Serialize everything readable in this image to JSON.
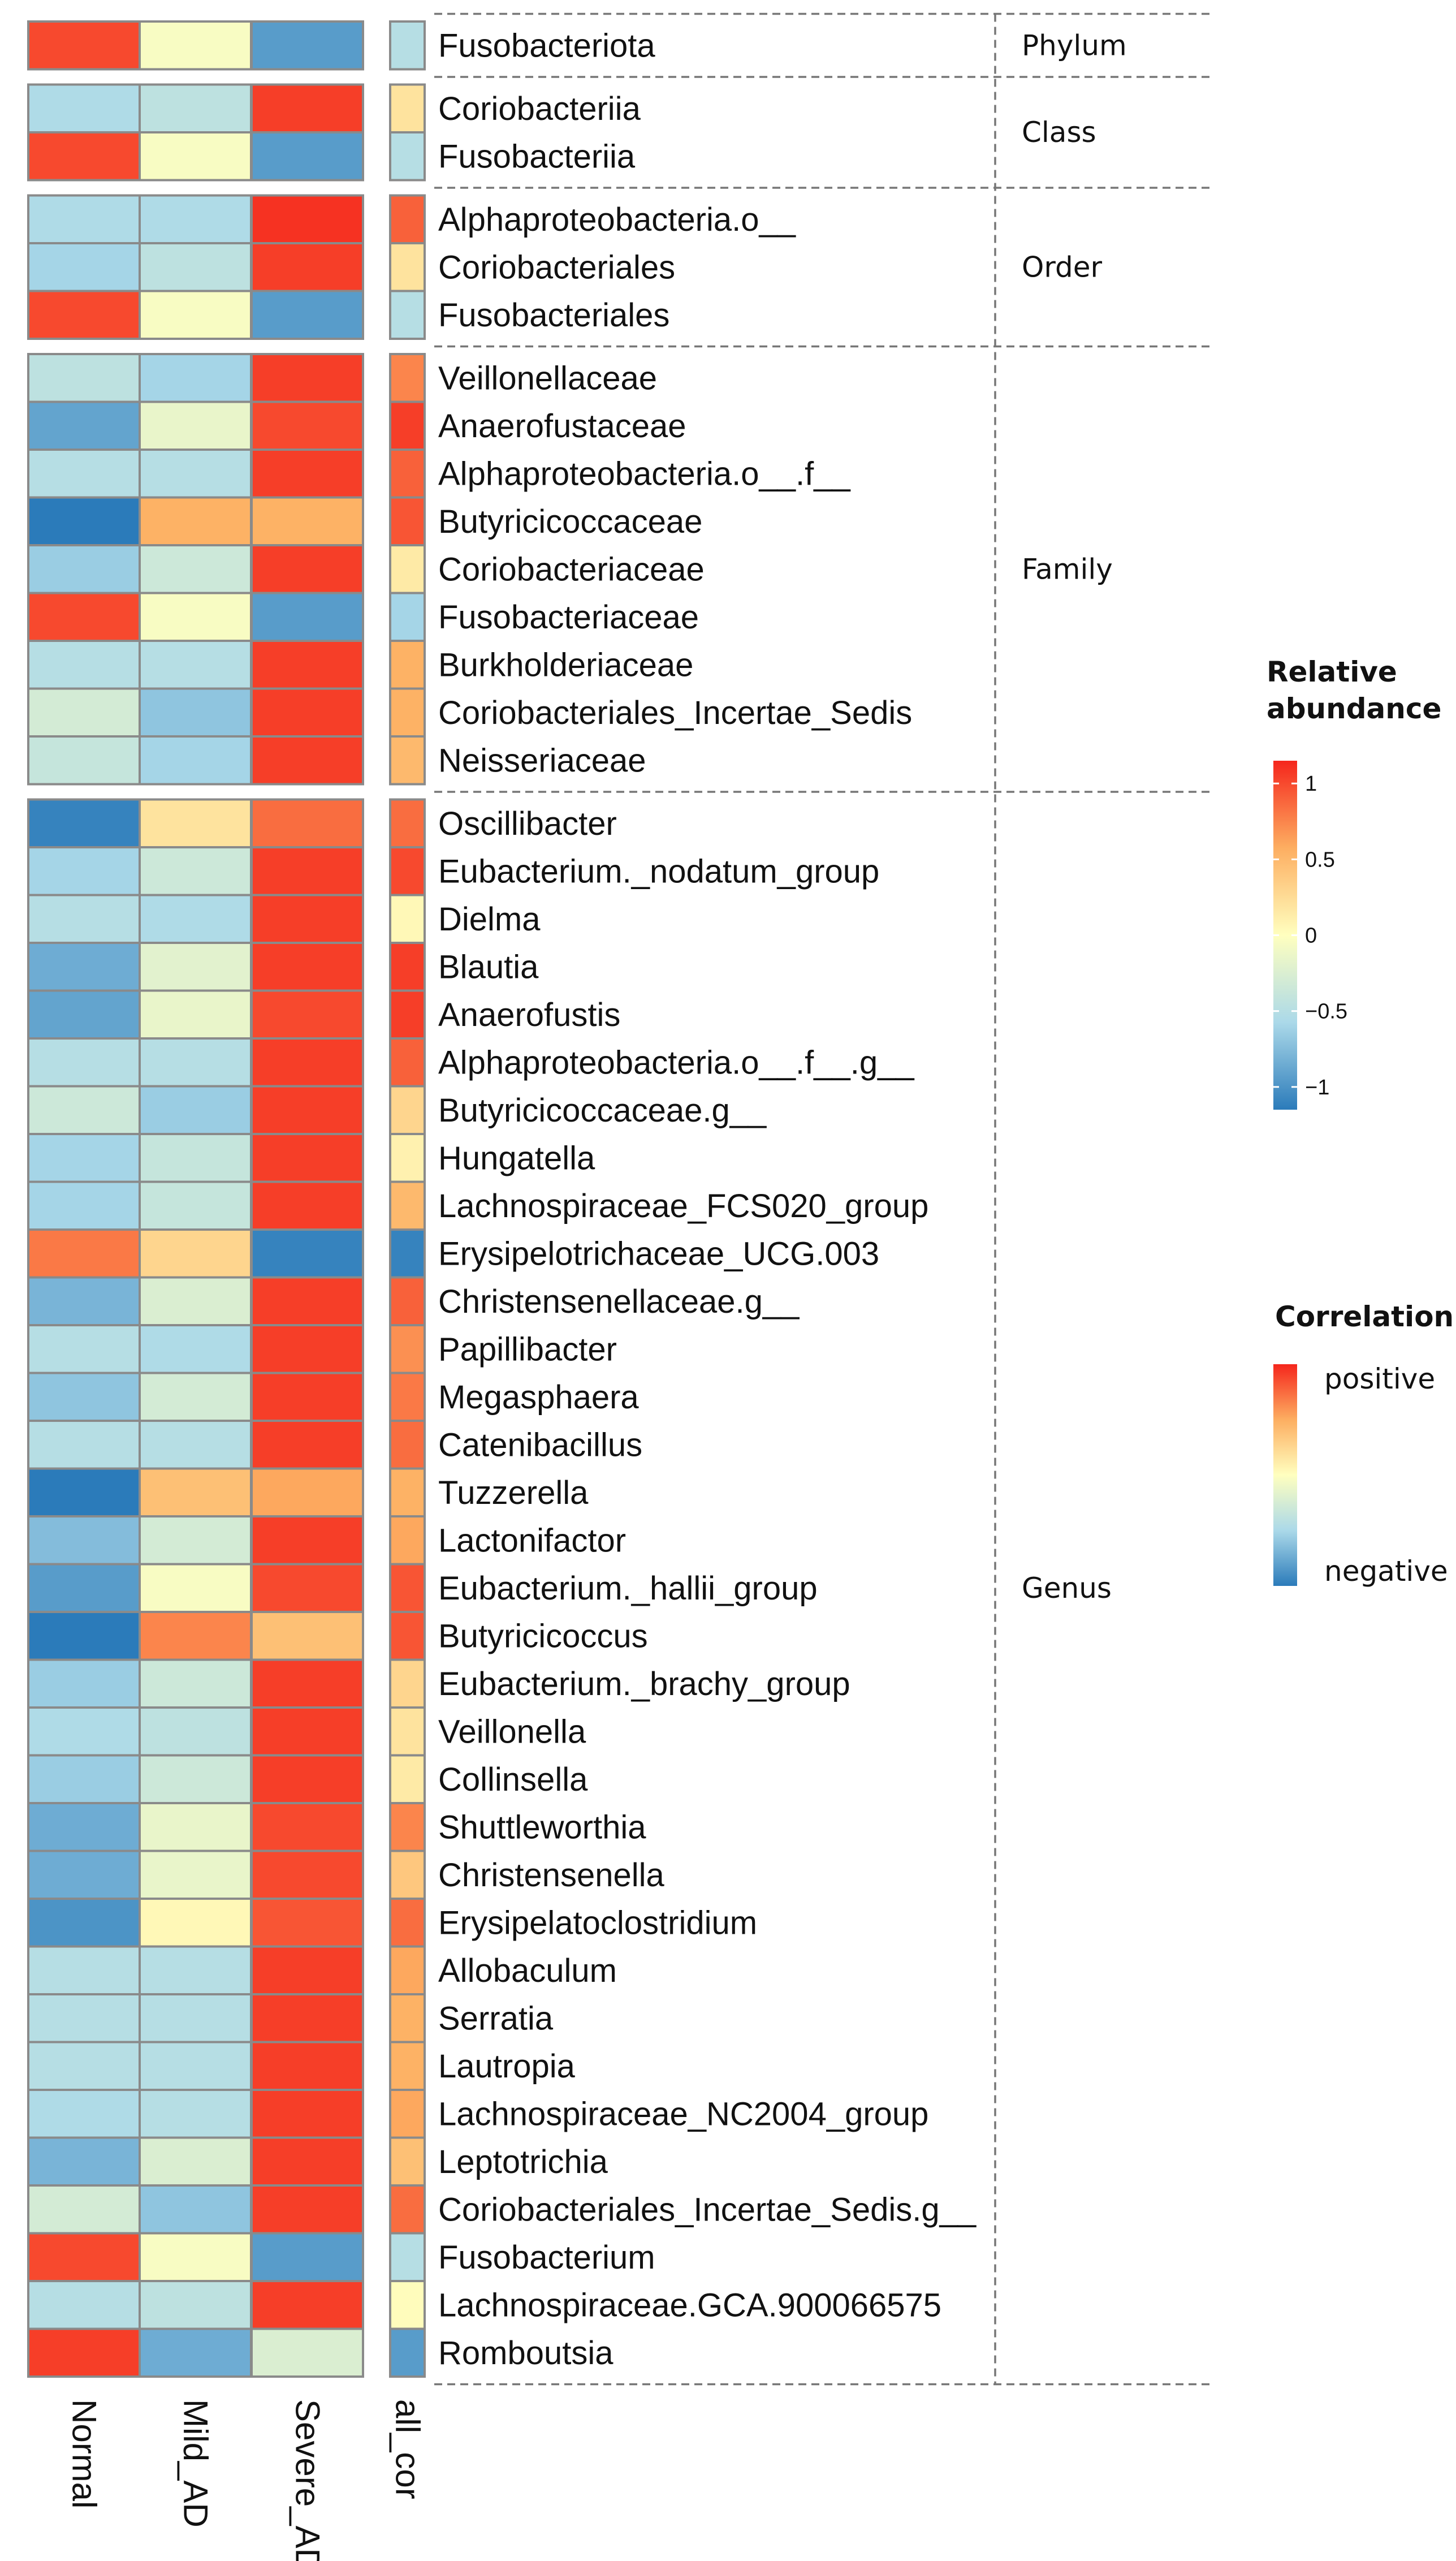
{
  "colors": {
    "low": "#2b7bba",
    "mid": "#ffffbf",
    "high": "#f5261c",
    "cell_border": "#8a8a8a",
    "divider": "#777777"
  },
  "chart_data": {
    "type": "heatmap",
    "columns": [
      "Normal",
      "Mild_AD",
      "Severe_AD"
    ],
    "annotation_column": "all_cor",
    "groups": [
      {
        "label": "Phylum",
        "rows": [
          {
            "name": "Fusobacteriota",
            "values": [
              1.0,
              -0.05,
              -0.95
            ],
            "all_cor": -0.5
          }
        ]
      },
      {
        "label": "Class",
        "rows": [
          {
            "name": "Coriobacteriia",
            "values": [
              -0.55,
              -0.45,
              1.05
            ],
            "all_cor": 0.2
          },
          {
            "name": "Fusobacteriia",
            "values": [
              1.0,
              -0.05,
              -0.95
            ],
            "all_cor": -0.5
          }
        ]
      },
      {
        "label": "Order",
        "rows": [
          {
            "name": "Alphaproteobacteria.o__",
            "values": [
              -0.55,
              -0.55,
              1.1
            ],
            "all_cor": 0.9
          },
          {
            "name": "Coriobacteriales",
            "values": [
              -0.6,
              -0.45,
              1.05
            ],
            "all_cor": 0.2
          },
          {
            "name": "Fusobacteriales",
            "values": [
              1.0,
              -0.05,
              -0.95
            ],
            "all_cor": -0.5
          }
        ]
      },
      {
        "label": "Family",
        "rows": [
          {
            "name": "Veillonellaceae",
            "values": [
              -0.45,
              -0.6,
              1.05
            ],
            "all_cor": 0.75
          },
          {
            "name": "Anaerofustaceae",
            "values": [
              -0.9,
              -0.15,
              1.0
            ],
            "all_cor": 1.05
          },
          {
            "name": "Alphaproteobacteria.o__.f__",
            "values": [
              -0.5,
              -0.5,
              1.05
            ],
            "all_cor": 0.9
          },
          {
            "name": "Butyricicoccaceae",
            "values": [
              -1.15,
              0.55,
              0.55
            ],
            "all_cor": 0.95
          },
          {
            "name": "Coriobacteriaceae",
            "values": [
              -0.65,
              -0.35,
              1.05
            ],
            "all_cor": 0.15
          },
          {
            "name": "Fusobacteriaceae",
            "values": [
              1.0,
              -0.05,
              -0.95
            ],
            "all_cor": -0.6
          },
          {
            "name": "Burkholderiaceae",
            "values": [
              -0.5,
              -0.5,
              1.05
            ],
            "all_cor": 0.55
          },
          {
            "name": "Coriobacteriales_Incertae_Sedis",
            "values": [
              -0.3,
              -0.7,
              1.05
            ],
            "all_cor": 0.55
          },
          {
            "name": "Neisseriaceae",
            "values": [
              -0.4,
              -0.6,
              1.05
            ],
            "all_cor": 0.5
          }
        ]
      },
      {
        "label": "Genus",
        "rows": [
          {
            "name": "Oscillibacter",
            "values": [
              -1.1,
              0.2,
              0.85
            ],
            "all_cor": 0.85
          },
          {
            "name": "Eubacterium._nodatum_group",
            "values": [
              -0.6,
              -0.35,
              1.05
            ],
            "all_cor": 1.0
          },
          {
            "name": "Dielma",
            "values": [
              -0.5,
              -0.55,
              1.05
            ],
            "all_cor": 0.05
          },
          {
            "name": "Blautia",
            "values": [
              -0.85,
              -0.2,
              1.05
            ],
            "all_cor": 1.05
          },
          {
            "name": "Anaerofustis",
            "values": [
              -0.9,
              -0.15,
              1.0
            ],
            "all_cor": 1.05
          },
          {
            "name": "Alphaproteobacteria.o__.f__.g__",
            "values": [
              -0.5,
              -0.5,
              1.05
            ],
            "all_cor": 0.9
          },
          {
            "name": "Butyricicoccaceae.g__",
            "values": [
              -0.35,
              -0.65,
              1.05
            ],
            "all_cor": 0.3
          },
          {
            "name": "Hungatella",
            "values": [
              -0.6,
              -0.4,
              1.05
            ],
            "all_cor": 0.1
          },
          {
            "name": "Lachnospiraceae_FCS020_group",
            "values": [
              -0.6,
              -0.4,
              1.05
            ],
            "all_cor": 0.5
          },
          {
            "name": "Erysipelotrichaceae_UCG.003",
            "values": [
              0.8,
              0.3,
              -1.1
            ],
            "all_cor": -1.1
          },
          {
            "name": "Christensenellaceae.g__",
            "values": [
              -0.8,
              -0.25,
              1.05
            ],
            "all_cor": 0.9
          },
          {
            "name": "Papillibacter",
            "values": [
              -0.5,
              -0.55,
              1.05
            ],
            "all_cor": 0.7
          },
          {
            "name": "Megasphaera",
            "values": [
              -0.7,
              -0.3,
              1.05
            ],
            "all_cor": 0.8
          },
          {
            "name": "Catenibacillus",
            "values": [
              -0.5,
              -0.5,
              1.05
            ],
            "all_cor": 0.85
          },
          {
            "name": "Tuzzerella",
            "values": [
              -1.15,
              0.45,
              0.6
            ],
            "all_cor": 0.55
          },
          {
            "name": "Lactonifactor",
            "values": [
              -0.75,
              -0.3,
              1.05
            ],
            "all_cor": 0.6
          },
          {
            "name": "Eubacterium._hallii_group",
            "values": [
              -0.95,
              -0.05,
              1.0
            ],
            "all_cor": 0.95
          },
          {
            "name": "Butyricicoccus",
            "values": [
              -1.15,
              0.75,
              0.45
            ],
            "all_cor": 0.95
          },
          {
            "name": "Eubacterium._brachy_group",
            "values": [
              -0.65,
              -0.35,
              1.05
            ],
            "all_cor": 0.3
          },
          {
            "name": "Veillonella",
            "values": [
              -0.55,
              -0.45,
              1.05
            ],
            "all_cor": 0.2
          },
          {
            "name": "Collinsella",
            "values": [
              -0.65,
              -0.35,
              1.05
            ],
            "all_cor": 0.15
          },
          {
            "name": "Shuttleworthia",
            "values": [
              -0.85,
              -0.15,
              1.0
            ],
            "all_cor": 0.75
          },
          {
            "name": "Christensenella",
            "values": [
              -0.85,
              -0.15,
              1.0
            ],
            "all_cor": 0.4
          },
          {
            "name": "Erysipelatoclostridium",
            "values": [
              -1.0,
              0.05,
              0.95
            ],
            "all_cor": 0.85
          },
          {
            "name": "Allobaculum",
            "values": [
              -0.5,
              -0.5,
              1.05
            ],
            "all_cor": 0.6
          },
          {
            "name": "Serratia",
            "values": [
              -0.5,
              -0.5,
              1.05
            ],
            "all_cor": 0.55
          },
          {
            "name": "Lautropia",
            "values": [
              -0.5,
              -0.5,
              1.05
            ],
            "all_cor": 0.55
          },
          {
            "name": "Lachnospiraceae_NC2004_group",
            "values": [
              -0.55,
              -0.5,
              1.05
            ],
            "all_cor": 0.6
          },
          {
            "name": "Leptotrichia",
            "values": [
              -0.8,
              -0.25,
              1.05
            ],
            "all_cor": 0.45
          },
          {
            "name": "Coriobacteriales_Incertae_Sedis.g__",
            "values": [
              -0.3,
              -0.7,
              1.05
            ],
            "all_cor": 0.85
          },
          {
            "name": "Fusobacterium",
            "values": [
              1.0,
              -0.05,
              -0.95
            ],
            "all_cor": -0.5
          },
          {
            "name": "Lachnospiraceae.GCA.900066575",
            "values": [
              -0.5,
              -0.45,
              1.05
            ],
            "all_cor": 0.02
          },
          {
            "name": "Romboutsia",
            "values": [
              1.05,
              -0.85,
              -0.25
            ],
            "all_cor": -0.95
          }
        ]
      }
    ],
    "legend_abundance": {
      "title_line1": "Relative",
      "title_line2": "abundance",
      "ticks": [
        "1",
        "0.5",
        "0",
        "−0.5",
        "−1"
      ],
      "range": [
        -1.15,
        1.15
      ]
    },
    "legend_correlation": {
      "title": "Correlation",
      "top_label": "positive",
      "bottom_label": "negative"
    }
  }
}
